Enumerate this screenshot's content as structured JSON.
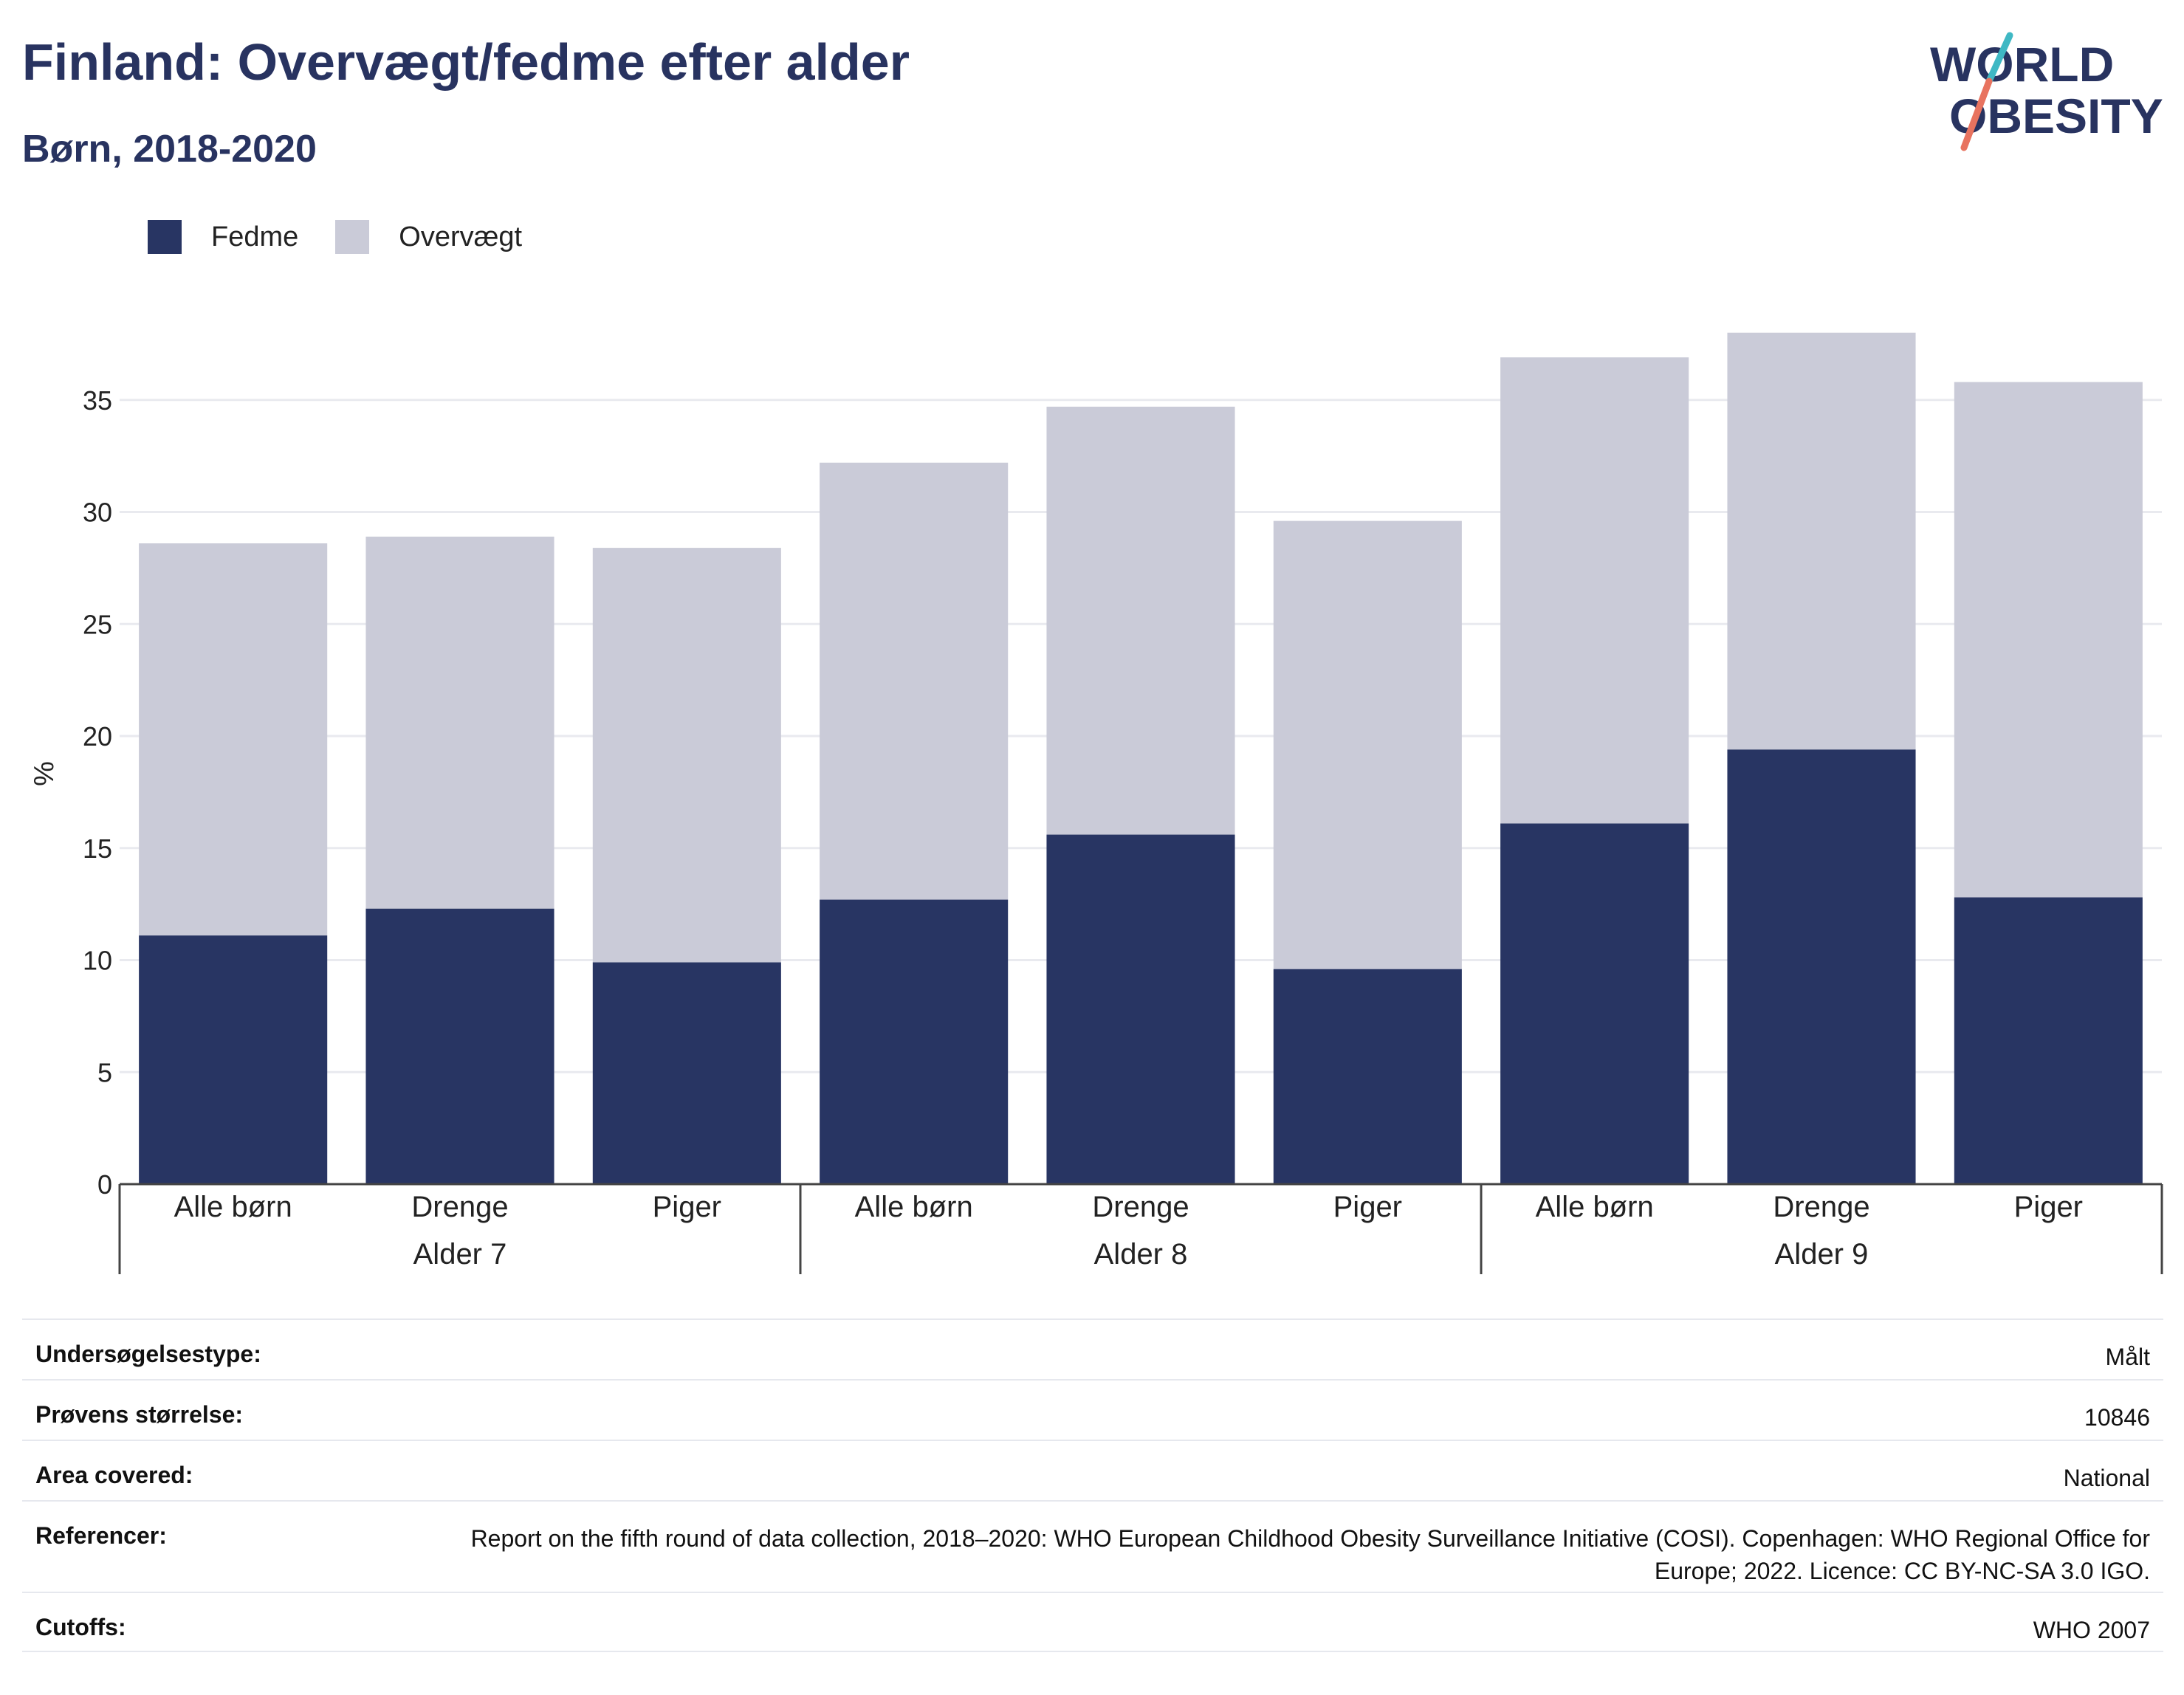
{
  "header": {
    "title": "Finland: Overvægt/fedme efter alder",
    "subtitle": "Børn, 2018-2020"
  },
  "logo": {
    "line1": "WORLD",
    "line2": "OBESITY",
    "slash_color_top": "#3fb8c4",
    "slash_color_bottom": "#e8735f"
  },
  "legend": {
    "items": [
      {
        "label": "Fedme",
        "color": "#283563"
      },
      {
        "label": "Overvægt",
        "color": "#cacbd8"
      }
    ]
  },
  "chart_data": {
    "type": "bar",
    "stacked": true,
    "ylabel": "%",
    "ylim": [
      0,
      40
    ],
    "yticks": [
      0,
      5,
      10,
      15,
      20,
      25,
      30,
      35
    ],
    "grid": true,
    "legend_position": "top-left",
    "categories": [
      "Alle børn",
      "Drenge",
      "Piger",
      "Alle børn",
      "Drenge",
      "Piger",
      "Alle børn",
      "Drenge",
      "Piger"
    ],
    "groups": [
      {
        "label": "Alder 7",
        "count": 3
      },
      {
        "label": "Alder 8",
        "count": 3
      },
      {
        "label": "Alder 9",
        "count": 3
      }
    ],
    "series": [
      {
        "name": "Fedme",
        "color": "#283563",
        "values": [
          11.1,
          12.3,
          9.9,
          12.7,
          15.6,
          9.6,
          16.1,
          19.4,
          12.8
        ]
      },
      {
        "name": "Overvægt",
        "color": "#cacbd8",
        "values": [
          17.5,
          16.6,
          18.5,
          19.5,
          19.1,
          20.0,
          20.8,
          18.6,
          23.0
        ]
      }
    ]
  },
  "info": {
    "rows": [
      {
        "label": "Undersøgelsestype:",
        "value": "Målt"
      },
      {
        "label": "Prøvens størrelse:",
        "value": "10846"
      },
      {
        "label": "Area covered:",
        "value": "National"
      },
      {
        "label": "Referencer:",
        "value": "Report on the fifth round of data collection, 2018–2020: WHO European Childhood Obesity Surveillance Initiative (COSI). Copenhagen: WHO Regional Office for Europe; 2022. Licence: CC BY-NC-SA 3.0 IGO."
      },
      {
        "label": "Cutoffs:",
        "value": "WHO 2007"
      }
    ]
  }
}
